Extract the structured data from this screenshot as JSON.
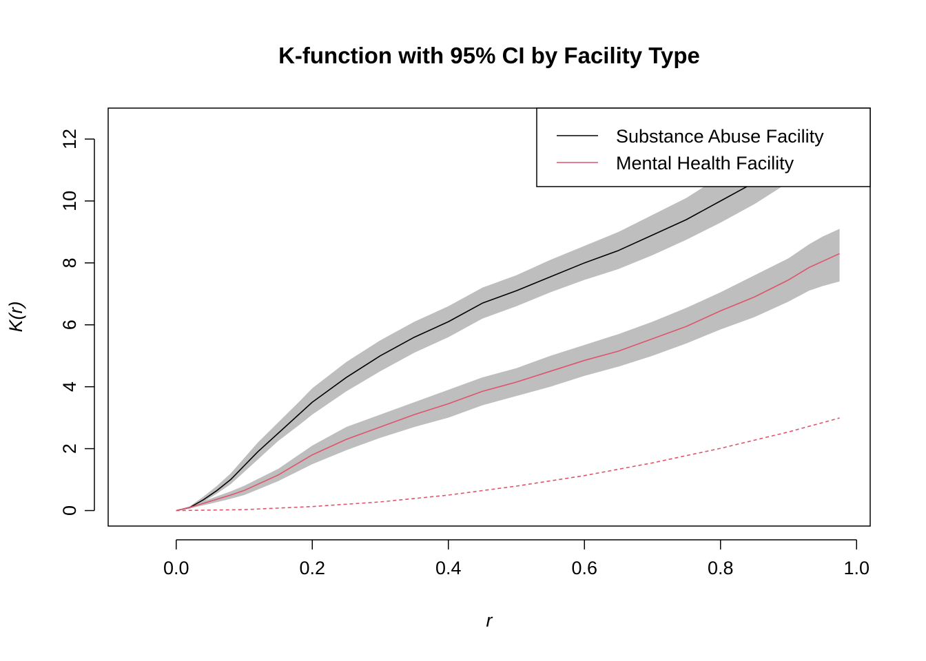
{
  "chart_data": {
    "type": "line",
    "title": "K-function with 95% CI by Facility Type",
    "xlabel": "r",
    "ylabel": "K(r)",
    "xlim": [
      -0.1,
      1.02
    ],
    "ylim": [
      -0.5,
      13.0
    ],
    "x_ticks": [
      "0.0",
      "0.2",
      "0.4",
      "0.6",
      "0.8",
      "1.0"
    ],
    "y_ticks": [
      "0",
      "2",
      "4",
      "6",
      "8",
      "10",
      "12"
    ],
    "x_tick_values": [
      0.0,
      0.2,
      0.4,
      0.6,
      0.8,
      1.0
    ],
    "y_tick_values": [
      0,
      2,
      4,
      6,
      8,
      10,
      12
    ],
    "grid": false,
    "legend_position": "top-right",
    "ci_color": "#bebebe",
    "series": [
      {
        "name": "Substance Abuse Facility",
        "color": "#000000",
        "style": "solid",
        "x": [
          0.0,
          0.02,
          0.04,
          0.06,
          0.08,
          0.1,
          0.12,
          0.15,
          0.18,
          0.2,
          0.25,
          0.3,
          0.35,
          0.4,
          0.45,
          0.5,
          0.55,
          0.6,
          0.65,
          0.7,
          0.75,
          0.8,
          0.85,
          0.9,
          0.95,
          0.975
        ],
        "y": [
          0.0,
          0.1,
          0.35,
          0.65,
          1.0,
          1.45,
          1.9,
          2.5,
          3.1,
          3.5,
          4.3,
          5.0,
          5.6,
          6.1,
          6.7,
          7.1,
          7.55,
          8.0,
          8.4,
          8.9,
          9.4,
          10.0,
          10.6,
          11.4,
          12.3,
          12.7
        ],
        "ci_lower": [
          0.0,
          0.06,
          0.28,
          0.55,
          0.85,
          1.25,
          1.65,
          2.25,
          2.75,
          3.1,
          3.85,
          4.5,
          5.1,
          5.6,
          6.2,
          6.6,
          7.05,
          7.45,
          7.8,
          8.25,
          8.75,
          9.3,
          9.9,
          10.6,
          11.3,
          11.7
        ],
        "ci_upper": [
          0.0,
          0.14,
          0.45,
          0.8,
          1.2,
          1.7,
          2.2,
          2.85,
          3.5,
          3.95,
          4.8,
          5.5,
          6.1,
          6.6,
          7.2,
          7.6,
          8.1,
          8.55,
          9.0,
          9.55,
          10.1,
          10.8,
          11.4,
          12.3,
          13.2,
          13.6
        ]
      },
      {
        "name": "Mental Health Facility",
        "color": "#df536b",
        "style": "solid",
        "x": [
          0.0,
          0.02,
          0.05,
          0.08,
          0.1,
          0.15,
          0.2,
          0.25,
          0.3,
          0.35,
          0.4,
          0.45,
          0.5,
          0.55,
          0.6,
          0.65,
          0.7,
          0.75,
          0.8,
          0.85,
          0.9,
          0.93,
          0.95,
          0.975
        ],
        "y": [
          0.0,
          0.1,
          0.3,
          0.5,
          0.65,
          1.15,
          1.8,
          2.3,
          2.7,
          3.1,
          3.45,
          3.85,
          4.15,
          4.5,
          4.85,
          5.15,
          5.55,
          5.95,
          6.45,
          6.9,
          7.45,
          7.85,
          8.05,
          8.3
        ],
        "ci_lower": [
          0.0,
          0.07,
          0.22,
          0.38,
          0.5,
          0.95,
          1.5,
          1.95,
          2.35,
          2.7,
          3.0,
          3.4,
          3.7,
          4.0,
          4.35,
          4.65,
          5.0,
          5.4,
          5.85,
          6.25,
          6.75,
          7.1,
          7.25,
          7.4
        ],
        "ci_upper": [
          0.0,
          0.13,
          0.38,
          0.62,
          0.8,
          1.35,
          2.1,
          2.7,
          3.1,
          3.5,
          3.9,
          4.3,
          4.6,
          5.0,
          5.35,
          5.7,
          6.1,
          6.55,
          7.05,
          7.6,
          8.15,
          8.6,
          8.85,
          9.1
        ]
      },
      {
        "color": "#df536b",
        "style": "dashed",
        "x": [
          0.0,
          0.1,
          0.2,
          0.3,
          0.4,
          0.5,
          0.6,
          0.7,
          0.8,
          0.9,
          0.975
        ],
        "y": [
          0.0,
          0.03,
          0.13,
          0.28,
          0.5,
          0.79,
          1.13,
          1.54,
          2.01,
          2.54,
          2.99
        ]
      }
    ]
  }
}
